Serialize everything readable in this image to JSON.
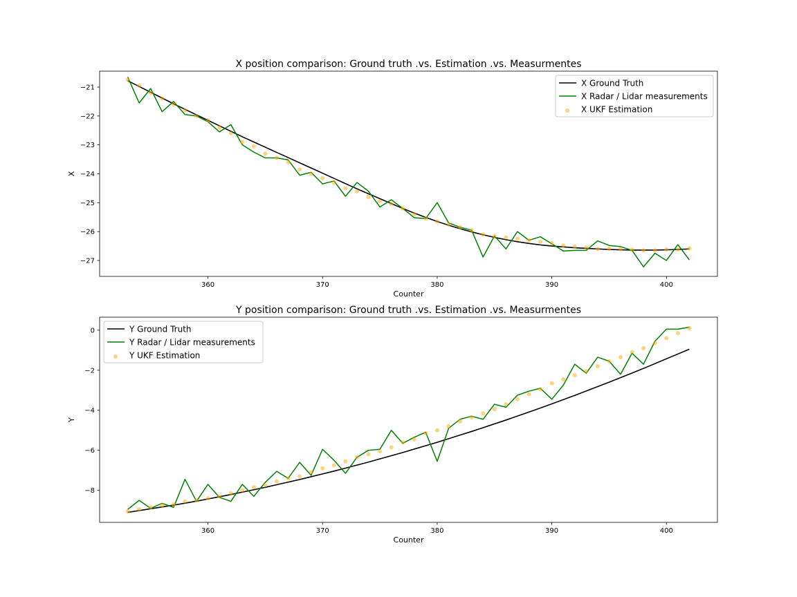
{
  "chart_data": [
    {
      "type": "line",
      "title": "X position comparison: Ground truth .vs. Estimation .vs. Measurmentes",
      "xlabel": "Counter",
      "ylabel": "X",
      "xlim": [
        350.55,
        404.45
      ],
      "ylim": [
        -27.55,
        -20.45
      ],
      "xticks": [
        360,
        370,
        380,
        390,
        400
      ],
      "yticks": [
        -21,
        -22,
        -23,
        -24,
        -25,
        -26,
        -27
      ],
      "grid": false,
      "legend_position": "top-right",
      "x": [
        353,
        354,
        355,
        356,
        357,
        358,
        359,
        360,
        361,
        362,
        363,
        364,
        365,
        366,
        367,
        368,
        369,
        370,
        371,
        372,
        373,
        374,
        375,
        376,
        377,
        378,
        379,
        380,
        381,
        382,
        383,
        384,
        385,
        386,
        387,
        388,
        389,
        390,
        391,
        392,
        393,
        394,
        395,
        396,
        397,
        398,
        399,
        400,
        401,
        402
      ],
      "series": [
        {
          "name": "X Ground Truth",
          "color": "#000000",
          "style": "line",
          "values": [
            -20.78,
            -20.98,
            -21.18,
            -21.38,
            -21.58,
            -21.77,
            -21.96,
            -22.15,
            -22.34,
            -22.53,
            -22.72,
            -22.9,
            -23.08,
            -23.26,
            -23.44,
            -23.62,
            -23.8,
            -23.98,
            -24.16,
            -24.34,
            -24.52,
            -24.69,
            -24.86,
            -25.03,
            -25.2,
            -25.36,
            -25.51,
            -25.65,
            -25.78,
            -25.9,
            -26.01,
            -26.11,
            -26.2,
            -26.28,
            -26.35,
            -26.41,
            -26.46,
            -26.5,
            -26.53,
            -26.56,
            -26.58,
            -26.6,
            -26.62,
            -26.63,
            -26.64,
            -26.64,
            -26.64,
            -26.63,
            -26.62,
            -26.6
          ]
        },
        {
          "name": "X Radar / Lidar measurements",
          "color": "#008000",
          "style": "line",
          "values": [
            -20.65,
            -21.55,
            -21.05,
            -21.85,
            -21.5,
            -21.95,
            -22.0,
            -22.2,
            -22.55,
            -22.3,
            -23.0,
            -23.25,
            -23.45,
            -23.45,
            -23.52,
            -24.05,
            -23.95,
            -24.35,
            -24.25,
            -24.78,
            -24.3,
            -24.6,
            -25.15,
            -24.9,
            -25.2,
            -25.52,
            -25.55,
            -25.0,
            -25.7,
            -25.85,
            -25.95,
            -26.88,
            -26.15,
            -26.6,
            -26.0,
            -26.3,
            -26.18,
            -26.42,
            -26.67,
            -26.65,
            -26.65,
            -26.32,
            -26.48,
            -26.52,
            -26.65,
            -27.22,
            -26.75,
            -27.0,
            -26.45,
            -26.98
          ]
        },
        {
          "name": "X UKF Estimation",
          "color": "#ffa500",
          "style": "scatter",
          "values": [
            -20.75,
            -20.95,
            -21.2,
            -21.4,
            -21.6,
            -21.8,
            -22.0,
            -22.15,
            -22.4,
            -22.6,
            -22.9,
            -23.05,
            -23.3,
            -23.45,
            -23.6,
            -23.85,
            -24.0,
            -24.15,
            -24.3,
            -24.5,
            -24.6,
            -24.8,
            -24.95,
            -25.05,
            -25.2,
            -25.4,
            -25.55,
            -25.65,
            -25.75,
            -25.85,
            -25.95,
            -26.1,
            -26.15,
            -26.2,
            -26.25,
            -26.3,
            -26.35,
            -26.4,
            -26.48,
            -26.52,
            -26.55,
            -26.6,
            -26.6,
            -26.6,
            -26.62,
            -26.65,
            -26.65,
            -26.62,
            -26.62,
            -26.58
          ]
        }
      ]
    },
    {
      "type": "line",
      "title": "Y position comparison: Ground truth .vs. Estimation .vs. Measurmentes",
      "xlabel": "Counter",
      "ylabel": "Y",
      "xlim": [
        350.55,
        404.45
      ],
      "ylim": [
        -9.6,
        0.65
      ],
      "xticks": [
        360,
        370,
        380,
        390,
        400
      ],
      "yticks": [
        0,
        -2,
        -4,
        -6,
        -8
      ],
      "grid": false,
      "legend_position": "top-left",
      "x": [
        353,
        354,
        355,
        356,
        357,
        358,
        359,
        360,
        361,
        362,
        363,
        364,
        365,
        366,
        367,
        368,
        369,
        370,
        371,
        372,
        373,
        374,
        375,
        376,
        377,
        378,
        379,
        380,
        381,
        382,
        383,
        384,
        385,
        386,
        387,
        388,
        389,
        390,
        391,
        392,
        393,
        394,
        395,
        396,
        397,
        398,
        399,
        400,
        401,
        402
      ],
      "series": [
        {
          "name": "Y Ground Truth",
          "color": "#000000",
          "style": "line",
          "values": [
            -9.1,
            -9.01,
            -8.92,
            -8.83,
            -8.74,
            -8.64,
            -8.54,
            -8.43,
            -8.32,
            -8.21,
            -8.09,
            -7.97,
            -7.85,
            -7.72,
            -7.59,
            -7.46,
            -7.32,
            -7.18,
            -7.04,
            -6.89,
            -6.74,
            -6.59,
            -6.43,
            -6.27,
            -6.11,
            -5.94,
            -5.77,
            -5.6,
            -5.42,
            -5.24,
            -5.06,
            -4.87,
            -4.68,
            -4.49,
            -4.29,
            -4.09,
            -3.89,
            -3.68,
            -3.47,
            -3.26,
            -3.04,
            -2.82,
            -2.6,
            -2.37,
            -2.14,
            -1.91,
            -1.67,
            -1.43,
            -1.19,
            -0.95
          ]
        },
        {
          "name": "Y Radar / Lidar measurements",
          "color": "#008000",
          "style": "line",
          "values": [
            -8.95,
            -8.5,
            -8.9,
            -8.65,
            -8.85,
            -7.45,
            -8.55,
            -7.7,
            -8.35,
            -8.55,
            -7.7,
            -8.3,
            -7.6,
            -7.05,
            -7.4,
            -6.6,
            -7.25,
            -5.95,
            -6.5,
            -7.15,
            -6.35,
            -6.0,
            -5.95,
            -5.0,
            -5.65,
            -5.35,
            -5.1,
            -6.55,
            -4.9,
            -4.45,
            -4.3,
            -4.45,
            -3.7,
            -3.85,
            -3.25,
            -3.05,
            -2.9,
            -3.45,
            -2.75,
            -1.7,
            -2.15,
            -1.35,
            -1.55,
            -2.2,
            -1.15,
            -1.7,
            -0.55,
            0.05,
            0.05,
            0.15
          ]
        },
        {
          "name": "Y UKF Estimation",
          "color": "#ffa500",
          "style": "scatter",
          "values": [
            -9.05,
            -8.95,
            -8.85,
            -8.75,
            -8.7,
            -8.55,
            -8.5,
            -8.4,
            -8.3,
            -8.15,
            -8.0,
            -7.85,
            -7.75,
            -7.55,
            -7.4,
            -7.3,
            -7.1,
            -6.9,
            -6.75,
            -6.55,
            -6.35,
            -6.2,
            -6.05,
            -5.85,
            -5.6,
            -5.45,
            -5.15,
            -5.0,
            -4.8,
            -4.55,
            -4.35,
            -4.15,
            -3.95,
            -3.7,
            -3.45,
            -3.2,
            -2.95,
            -2.65,
            -2.45,
            -2.25,
            -2.05,
            -1.8,
            -1.55,
            -1.35,
            -1.1,
            -0.9,
            -0.65,
            -0.4,
            -0.15,
            0.1
          ]
        }
      ]
    }
  ]
}
